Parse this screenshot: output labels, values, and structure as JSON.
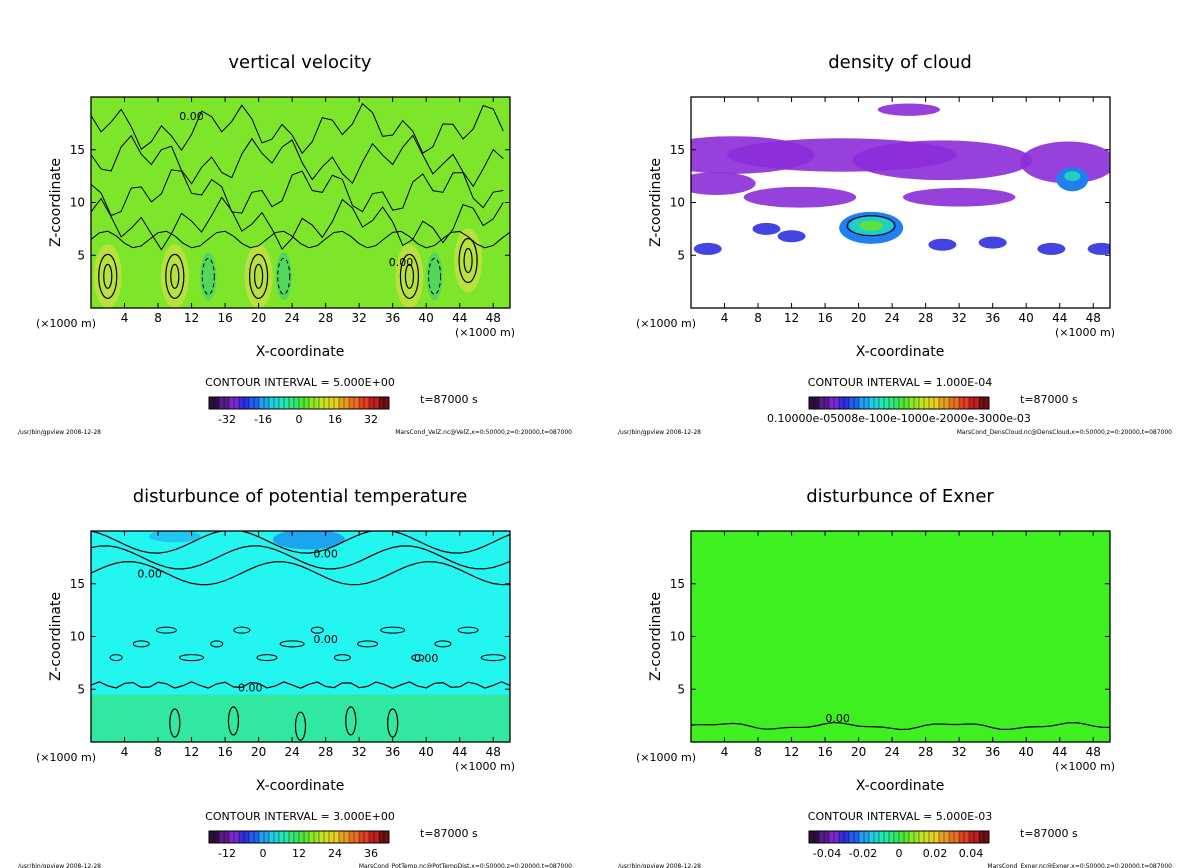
{
  "chart_data": [
    {
      "type": "heatmap",
      "title": "vertical velocity",
      "xlabel": "X-coordinate",
      "ylabel": "Z-coordinate",
      "x_unit_left": "(×1000 m)",
      "x_unit_right": "(×1000 m)",
      "x_ticks": [
        4,
        8,
        12,
        16,
        20,
        24,
        28,
        32,
        36,
        40,
        44,
        48
      ],
      "y_ticks": [
        5,
        10,
        15
      ],
      "xlim": [
        0,
        50
      ],
      "ylim": [
        0,
        20
      ],
      "contour_interval": "CONTOUR INTERVAL = 5.000E+00",
      "time": "t=87000 s",
      "colorbar_ticks": [
        "-32",
        "-16",
        "0",
        "16",
        "32"
      ],
      "contour_labels": [
        "0.00",
        "0.00"
      ],
      "footer_left": "/usr/bin/gpview  2008-12-28",
      "footer_right": "MarsCond_VelZ.nc@VelZ,x=0:50000,z=0:20000,t=087000",
      "background_color": "#7ee62a"
    },
    {
      "type": "heatmap",
      "title": "density of cloud",
      "xlabel": "X-coordinate",
      "ylabel": "Z-coordinate",
      "x_unit_left": "(×1000 m)",
      "x_unit_right": "(×1000 m)",
      "x_ticks": [
        4,
        8,
        12,
        16,
        20,
        24,
        28,
        32,
        36,
        40,
        44,
        48
      ],
      "y_ticks": [
        5,
        10,
        15
      ],
      "xlim": [
        0,
        50
      ],
      "ylim": [
        0,
        20
      ],
      "contour_interval": "CONTOUR INTERVAL = 1.000E-04",
      "time": "t=87000 s",
      "colorbar_label": "0.10000e-05008e-100e-1000e-2000e-3000e-03",
      "footer_left": "/usr/bin/gpview  2008-12-28",
      "footer_right": "MarsCond_DensCloud.nc@DensCloud,x=0:50000,z=0:20000,t=087000",
      "background_color": "#ffffff"
    },
    {
      "type": "heatmap",
      "title": "disturbunce of potential temperature",
      "xlabel": "X-coordinate",
      "ylabel": "Z-coordinate",
      "x_unit_left": "(×1000 m)",
      "x_unit_right": "(×1000 m)",
      "x_ticks": [
        4,
        8,
        12,
        16,
        20,
        24,
        28,
        32,
        36,
        40,
        44,
        48
      ],
      "y_ticks": [
        5,
        10,
        15
      ],
      "xlim": [
        0,
        50
      ],
      "ylim": [
        0,
        20
      ],
      "contour_interval": "CONTOUR INTERVAL = 3.000E+00",
      "time": "t=87000 s",
      "colorbar_ticks": [
        "-12",
        "0",
        "12",
        "24",
        "36"
      ],
      "contour_labels": [
        "0.00",
        "0.00",
        "0.00",
        "0.00",
        "0.00"
      ],
      "footer_left": "/usr/bin/gpview  2008-12-28",
      "footer_right": "MarsCond_PotTemp.nc@PotTempDist,x=0:50000,z=0:20000,t=087000",
      "background_color": "#23f5f0"
    },
    {
      "type": "heatmap",
      "title": "disturbunce of Exner",
      "xlabel": "X-coordinate",
      "ylabel": "Z-coordinate",
      "x_unit_left": "(×1000 m)",
      "x_unit_right": "(×1000 m)",
      "x_ticks": [
        4,
        8,
        12,
        16,
        20,
        24,
        28,
        32,
        36,
        40,
        44,
        48
      ],
      "y_ticks": [
        5,
        10,
        15
      ],
      "xlim": [
        0,
        50
      ],
      "ylim": [
        0,
        20
      ],
      "contour_interval": "CONTOUR INTERVAL = 5.000E-03",
      "time": "t=87000 s",
      "colorbar_ticks": [
        "-0.04",
        "-0.02",
        "0",
        "0.02",
        "0.04"
      ],
      "contour_labels": [
        "0.00"
      ],
      "footer_left": "/usr/bin/gpview  2008-12-28",
      "footer_right": "MarsCond_Exner.nc@Exner,x=0:50000,z=0:20000,t=087000",
      "background_color": "#3ef020"
    }
  ]
}
